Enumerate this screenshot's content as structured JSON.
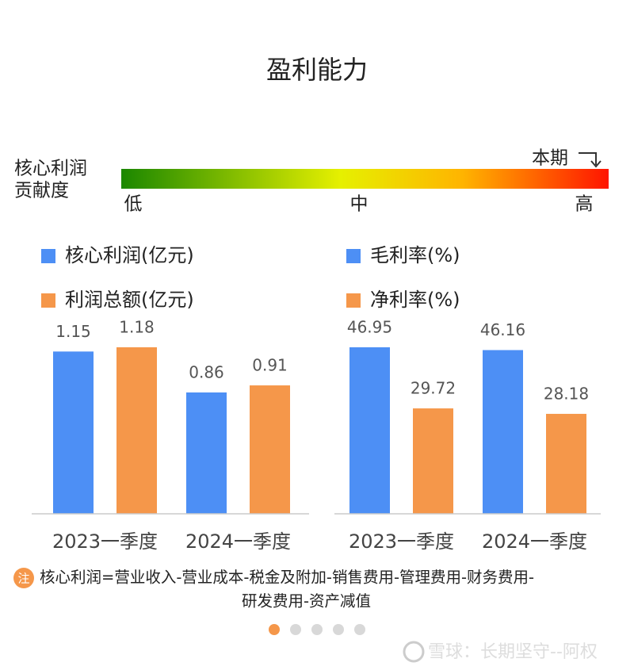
{
  "title": "盈利能力",
  "contribution": {
    "label": [
      "核心利润",
      "贡献度"
    ],
    "current": "本期",
    "low": "低",
    "mid": "中",
    "high": "高"
  },
  "chart_data": [
    {
      "type": "bar",
      "categories": [
        "2023一季度",
        "2024一季度"
      ],
      "series": [
        {
          "name": "核心利润(亿元)",
          "color": "#4d8ff5",
          "values": [
            1.15,
            0.86
          ]
        },
        {
          "name": "利润总额(亿元)",
          "color": "#f5974a",
          "values": [
            1.18,
            0.91
          ]
        }
      ]
    },
    {
      "type": "bar",
      "categories": [
        "2023一季度",
        "2024一季度"
      ],
      "series": [
        {
          "name": "毛利率(%)",
          "color": "#4d8ff5",
          "values": [
            46.95,
            46.16
          ]
        },
        {
          "name": "净利率(%)",
          "color": "#f5974a",
          "values": [
            29.72,
            28.18
          ]
        }
      ]
    }
  ],
  "note": {
    "badge": "注",
    "lines": [
      "核心利润=营业收入-营业成本-税金及附加-销售费用-管理费用-财务费用-",
      "研发费用-资产减值"
    ]
  },
  "watermark": "雪球：长期坚守--阿权"
}
